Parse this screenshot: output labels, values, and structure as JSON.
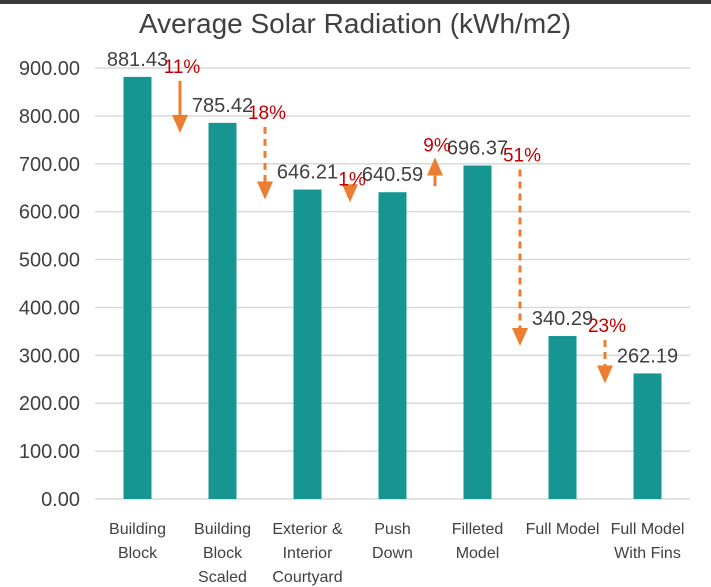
{
  "chart_data": {
    "type": "bar",
    "title": "Average Solar Radiation (kWh/m2)",
    "xlabel": "",
    "ylabel": "",
    "ylim": [
      0,
      900
    ],
    "ytick_step": 100,
    "ytick_labels": [
      "0.00",
      "100.00",
      "200.00",
      "300.00",
      "400.00",
      "500.00",
      "600.00",
      "700.00",
      "800.00",
      "900.00"
    ],
    "categories": [
      [
        "Building",
        "Block"
      ],
      [
        "Building",
        "Block",
        "Scaled"
      ],
      [
        "Exterior &",
        "Interior",
        "Courtyard"
      ],
      [
        "Push",
        "Down"
      ],
      [
        "Filleted",
        "Model"
      ],
      [
        "Full Model"
      ],
      [
        "Full Model",
        "With Fins"
      ]
    ],
    "values": [
      881.43,
      785.42,
      646.21,
      640.59,
      696.37,
      340.29,
      262.19
    ],
    "data_labels": [
      "881.43",
      "785.42",
      "646.21",
      "640.59",
      "696.37",
      "340.29",
      "262.19"
    ],
    "bar_color": "#169592",
    "annotations": [
      {
        "label": "11%",
        "direction": "down",
        "from_value": 881.43,
        "to_value": 785.42,
        "between": [
          0,
          1
        ],
        "style": "solid"
      },
      {
        "label": "18%",
        "direction": "down",
        "from_value": 785.42,
        "to_value": 646.21,
        "between": [
          1,
          2
        ],
        "style": "dashed"
      },
      {
        "label": "1%",
        "direction": "down",
        "from_value": 646.21,
        "to_value": 640.59,
        "between": [
          2,
          3
        ],
        "style": "dashed"
      },
      {
        "label": "9%",
        "direction": "up",
        "from_value": 640.59,
        "to_value": 696.37,
        "between": [
          3,
          4
        ],
        "style": "solid"
      },
      {
        "label": "51%",
        "direction": "down",
        "from_value": 696.37,
        "to_value": 340.29,
        "between": [
          4,
          5
        ],
        "style": "dashed"
      },
      {
        "label": "23%",
        "direction": "down",
        "from_value": 340.29,
        "to_value": 262.19,
        "between": [
          5,
          6
        ],
        "style": "dashed"
      }
    ],
    "annotation_color": "#c00000",
    "arrow_color": "#ed7d31"
  }
}
